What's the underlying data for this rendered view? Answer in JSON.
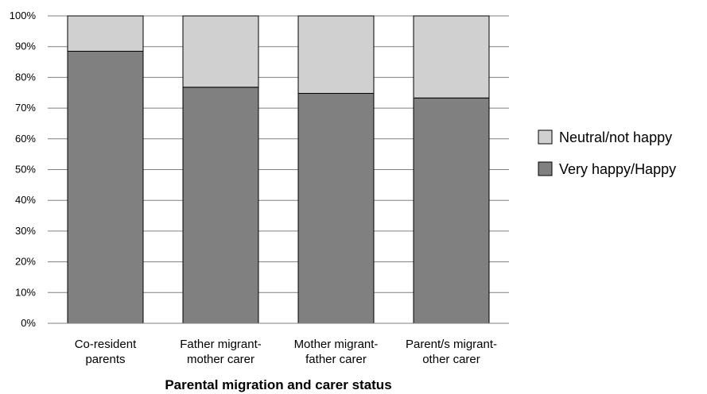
{
  "chart_data": {
    "type": "bar",
    "stacked": true,
    "percent": true,
    "categories": [
      [
        "Co-resident",
        "parents"
      ],
      [
        "Father migrant-",
        "mother carer"
      ],
      [
        "Mother migrant-",
        "father carer"
      ],
      [
        "Parent/s migrant-",
        "other carer"
      ]
    ],
    "series": [
      {
        "name": "Very happy/Happy",
        "color": "#808080",
        "values": [
          88.5,
          76.8,
          74.8,
          73.3
        ]
      },
      {
        "name": "Neutral/not happy",
        "color": "#d0d0d0",
        "values": [
          11.5,
          23.2,
          25.2,
          26.7
        ]
      }
    ],
    "yticks": [
      "0%",
      "10%",
      "20%",
      "30%",
      "40%",
      "50%",
      "60%",
      "70%",
      "80%",
      "90%",
      "100%"
    ],
    "ylim": [
      0,
      100
    ],
    "xlabel": "Parental migration and carer status",
    "ylabel": "",
    "grid": true,
    "legend": {
      "placement": "right",
      "order": [
        "Neutral/not happy",
        "Very happy/Happy"
      ]
    }
  }
}
